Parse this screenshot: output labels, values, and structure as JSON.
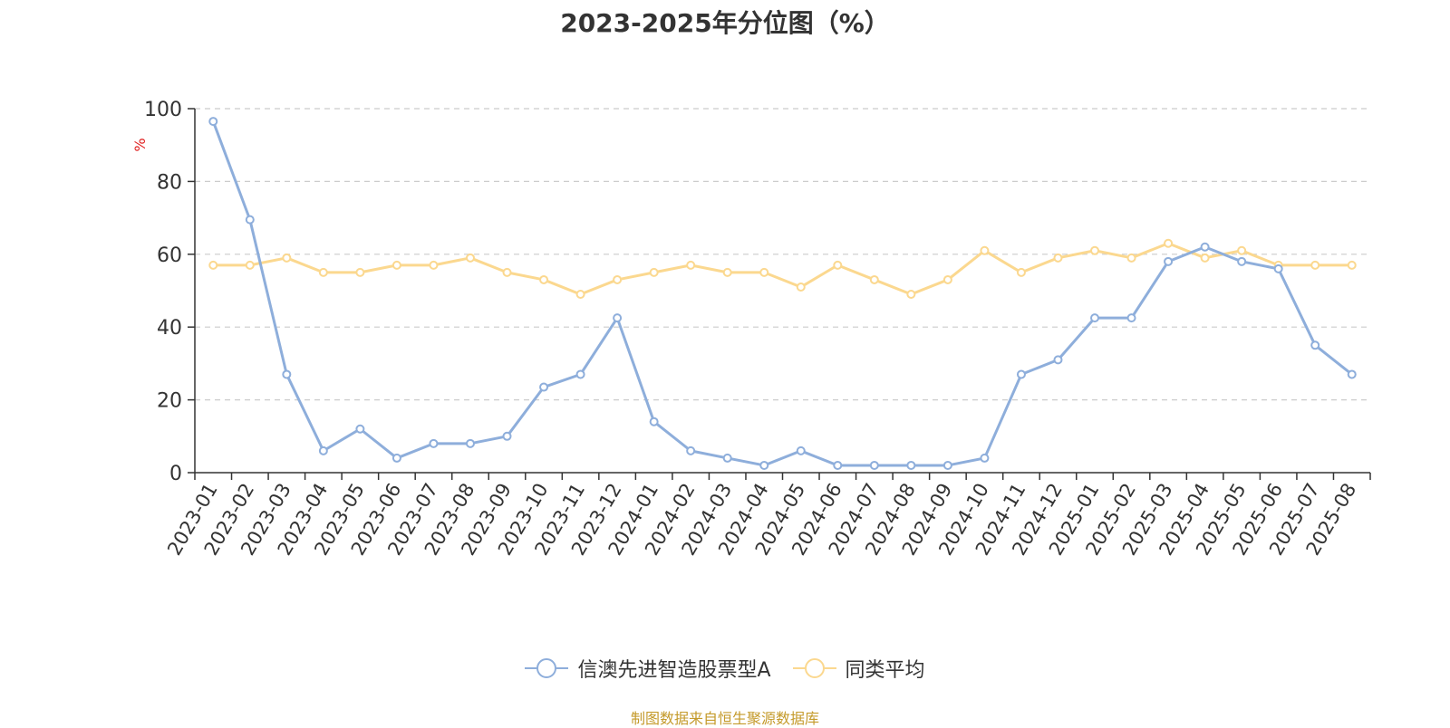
{
  "chart_data": {
    "type": "line",
    "title": "2023-2025年分位图（%）",
    "ylabel": "%",
    "xlabel": "",
    "ylim": [
      0,
      100
    ],
    "yticks": [
      0,
      20,
      40,
      60,
      80,
      100
    ],
    "grid": true,
    "legend_position": "bottom",
    "categories": [
      "2023-01",
      "2023-02",
      "2023-03",
      "2023-04",
      "2023-05",
      "2023-06",
      "2023-07",
      "2023-08",
      "2023-09",
      "2023-10",
      "2023-11",
      "2023-12",
      "2024-01",
      "2024-02",
      "2024-03",
      "2024-04",
      "2024-05",
      "2024-06",
      "2024-07",
      "2024-08",
      "2024-09",
      "2024-10",
      "2024-11",
      "2024-12",
      "2025-01",
      "2025-02",
      "2025-03",
      "2025-04",
      "2025-05",
      "2025-06",
      "2025-07",
      "2025-08"
    ],
    "series": [
      {
        "name": "信澳先进智造股票型A",
        "color": "#8eaedb",
        "values": [
          96.5,
          69.5,
          27,
          6,
          12,
          4,
          8,
          8,
          10,
          23.5,
          27,
          42.5,
          14,
          6,
          4,
          2,
          6,
          2,
          2,
          2,
          2,
          4,
          27,
          31,
          42.5,
          42.5,
          58,
          62,
          58,
          56,
          35,
          27
        ]
      },
      {
        "name": "同类平均",
        "color": "#fbd88f",
        "values": [
          57,
          57,
          59,
          55,
          55,
          57,
          57,
          59,
          55,
          53,
          49,
          53,
          55,
          57,
          55,
          55,
          51,
          57,
          53,
          49,
          53,
          61,
          55,
          59,
          61,
          59,
          63,
          59,
          61,
          57,
          57,
          57
        ]
      }
    ]
  },
  "source_note": "制图数据来自恒生聚源数据库"
}
